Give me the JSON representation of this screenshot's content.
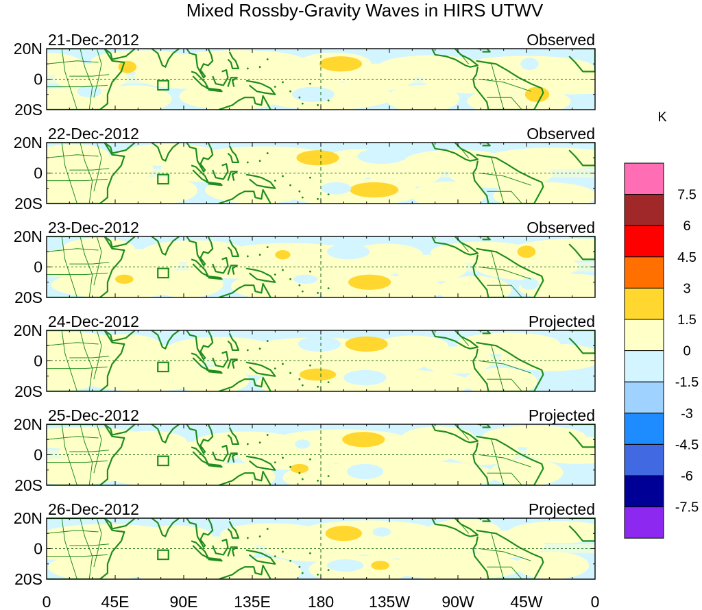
{
  "title": "Mixed Rossby-Gravity Waves in HIRS UTWV",
  "panels": [
    {
      "date": "21-Dec-2012",
      "status": "Observed",
      "anomalies": [
        {
          "lon": 193,
          "lat": 10,
          "rx": 14,
          "ry": 5,
          "level": "1.5"
        },
        {
          "lon": 53,
          "lat": 8,
          "rx": 6,
          "ry": 4,
          "level": "1.5"
        },
        {
          "lon": 322,
          "lat": -10,
          "rx": 8,
          "ry": 5,
          "level": "1.5"
        },
        {
          "lon": 175,
          "lat": -10,
          "rx": 14,
          "ry": 5,
          "level": "-1.5"
        },
        {
          "lon": 317,
          "lat": 10,
          "rx": 6,
          "ry": 4,
          "level": "-1.5"
        },
        {
          "lon": 28,
          "lat": -8,
          "rx": 8,
          "ry": 4,
          "level": "-1.5"
        }
      ]
    },
    {
      "date": "22-Dec-2012",
      "status": "Observed",
      "anomalies": [
        {
          "lon": 178,
          "lat": 10,
          "rx": 14,
          "ry": 5,
          "level": "1.5"
        },
        {
          "lon": 215,
          "lat": -11,
          "rx": 16,
          "ry": 5,
          "level": "1.5"
        },
        {
          "lon": 220,
          "lat": 11,
          "rx": 16,
          "ry": 5,
          "level": "-1.5"
        },
        {
          "lon": 190,
          "lat": -10,
          "rx": 10,
          "ry": 4,
          "level": "-1.5"
        }
      ]
    },
    {
      "date": "23-Dec-2012",
      "status": "Observed",
      "anomalies": [
        {
          "lon": 155,
          "lat": 8,
          "rx": 5,
          "ry": 3,
          "level": "1.5"
        },
        {
          "lon": 212,
          "lat": -10,
          "rx": 14,
          "ry": 5,
          "level": "1.5"
        },
        {
          "lon": 315,
          "lat": 10,
          "rx": 6,
          "ry": 4,
          "level": "1.5"
        },
        {
          "lon": 51,
          "lat": -8,
          "rx": 6,
          "ry": 3,
          "level": "1.5"
        },
        {
          "lon": 198,
          "lat": 10,
          "rx": 14,
          "ry": 5,
          "level": "-1.5"
        },
        {
          "lon": 317,
          "lat": -11,
          "rx": 6,
          "ry": 4,
          "level": "-1.5"
        },
        {
          "lon": 170,
          "lat": -8,
          "rx": 8,
          "ry": 3,
          "level": "-1.5"
        }
      ]
    },
    {
      "date": "24-Dec-2012",
      "status": "Projected",
      "anomalies": [
        {
          "lon": 210,
          "lat": 11,
          "rx": 14,
          "ry": 5,
          "level": "1.5"
        },
        {
          "lon": 178,
          "lat": -9,
          "rx": 12,
          "ry": 4,
          "level": "1.5"
        },
        {
          "lon": 179,
          "lat": 11,
          "rx": 14,
          "ry": 5,
          "level": "-1.5"
        },
        {
          "lon": 209,
          "lat": -11,
          "rx": 14,
          "ry": 5,
          "level": "-1.5"
        }
      ]
    },
    {
      "date": "25-Dec-2012",
      "status": "Projected",
      "anomalies": [
        {
          "lon": 208,
          "lat": 10,
          "rx": 14,
          "ry": 5,
          "level": "1.5"
        },
        {
          "lon": 166,
          "lat": -9,
          "rx": 6,
          "ry": 3,
          "level": "1.5"
        },
        {
          "lon": 209,
          "lat": -11,
          "rx": 12,
          "ry": 5,
          "level": "-1.5"
        },
        {
          "lon": 168,
          "lat": 7,
          "rx": 5,
          "ry": 3,
          "level": "-1.5"
        }
      ]
    },
    {
      "date": "26-Dec-2012",
      "status": "Projected",
      "anomalies": [
        {
          "lon": 195,
          "lat": 10,
          "rx": 12,
          "ry": 5,
          "level": "1.5"
        },
        {
          "lon": 219,
          "lat": -11,
          "rx": 6,
          "ry": 3,
          "level": "1.5"
        },
        {
          "lon": 220,
          "lat": 11,
          "rx": 6,
          "ry": 3,
          "level": "-1.5"
        },
        {
          "lon": 196,
          "lat": -11,
          "rx": 12,
          "ry": 4,
          "level": "-1.5"
        }
      ]
    }
  ],
  "lat_labels": [
    "20N",
    "0",
    "20S"
  ],
  "lon_labels": [
    "0",
    "45E",
    "90E",
    "135E",
    "180",
    "135W",
    "90W",
    "45W",
    "0"
  ],
  "colorbar": {
    "unit": "K",
    "labels": [
      "7.5",
      "6",
      "4.5",
      "3",
      "1.5",
      "0",
      "-1.5",
      "-3",
      "-4.5",
      "-6",
      "-7.5"
    ],
    "colors": [
      "#ff6eb4",
      "#a02828",
      "#ff0000",
      "#ff7000",
      "#ffd72e",
      "#ffffc8",
      "#d2f5ff",
      "#a0d2ff",
      "#1e8cff",
      "#4169e1",
      "#000096",
      "#8c28f0"
    ],
    "bins": [
      "7.5",
      "6",
      "4.5",
      "3",
      "1.5",
      "0",
      "-1.5",
      "-3",
      "-4.5",
      "-6",
      "-7.5"
    ]
  },
  "colors": {
    "coast": "#1e8c1e",
    "positive_base": "#ffffc8",
    "negative_base": "#d2f5ff"
  }
}
